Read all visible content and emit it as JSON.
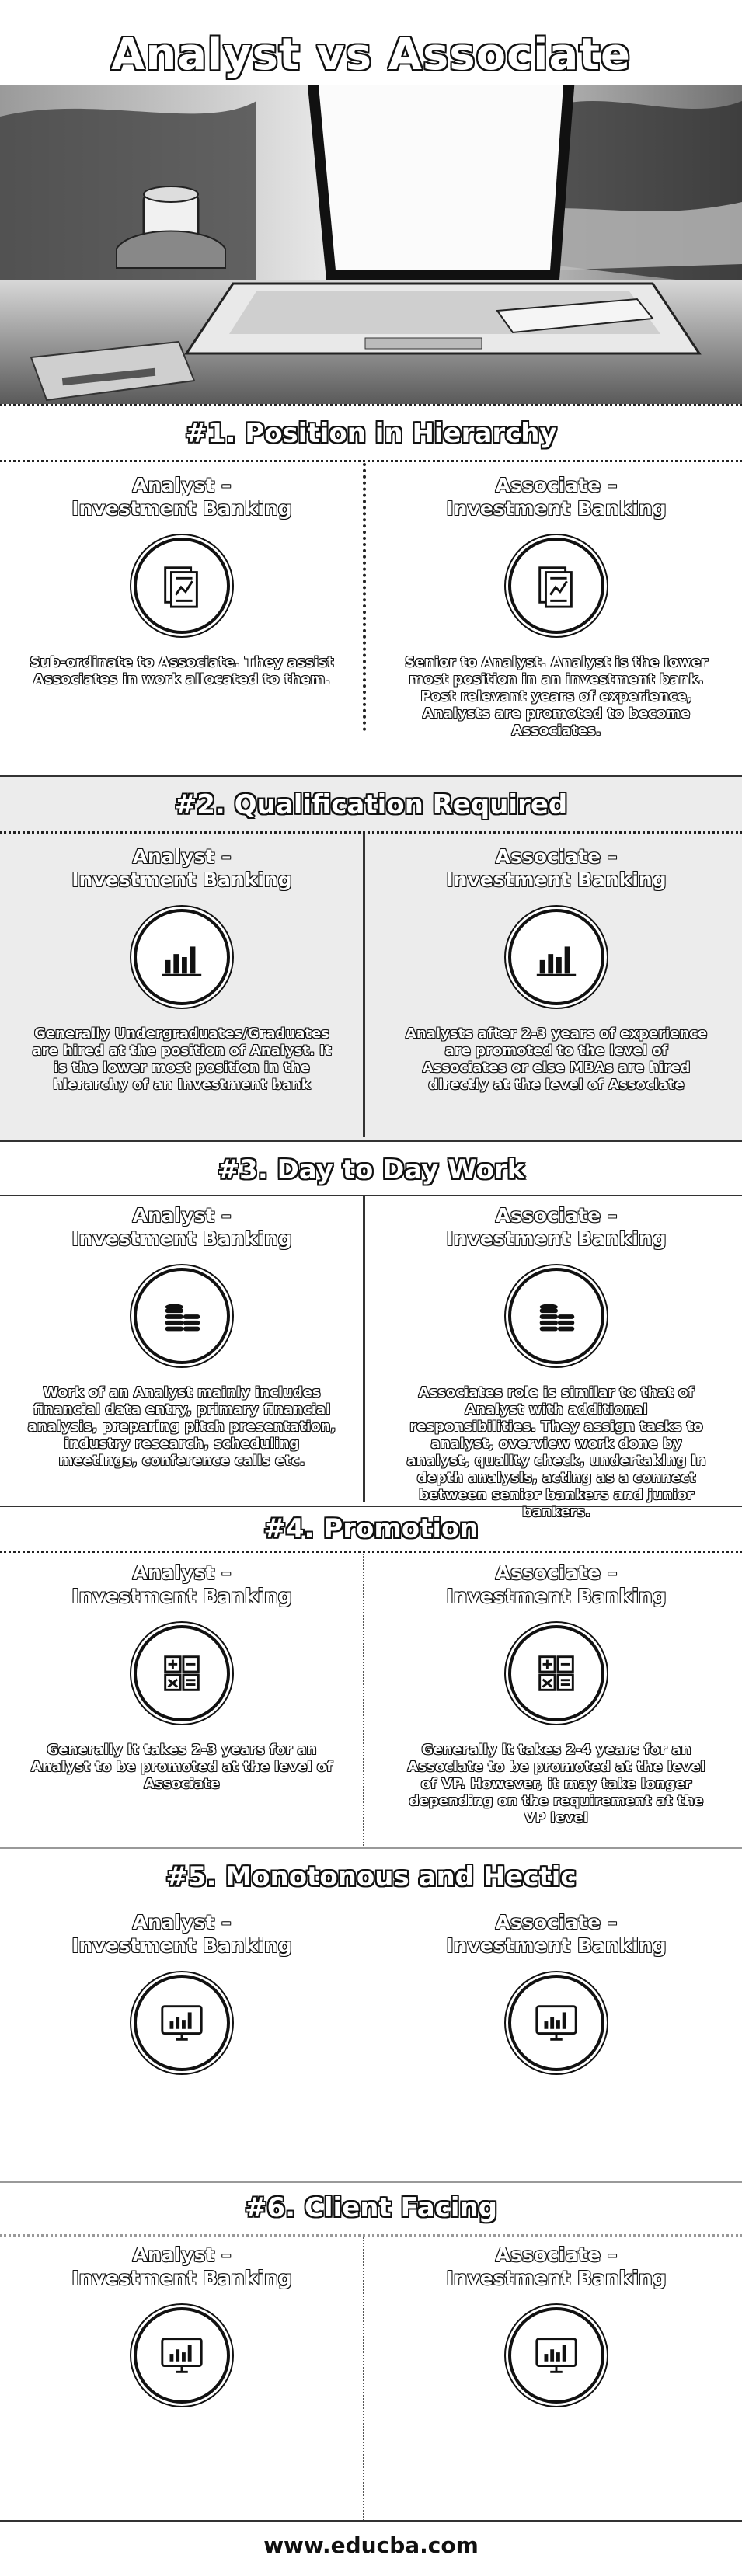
{
  "page": {
    "title": "Analyst vs Associate",
    "footer": "www.educba.com"
  },
  "sections": [
    {
      "title": "#1. Position in Hierarchy",
      "left": {
        "head1": "Analyst –",
        "head2": "Investment Banking",
        "icon": "document-chart-icon",
        "text": "Sub-ordinate to Associate. They assist Associates in work allocated to them."
      },
      "right": {
        "head1": "Associate –",
        "head2": "Investment Banking",
        "icon": "document-chart-icon",
        "text": "Senior to Analyst. Analyst is the lower most position in an investment bank. Post relevant years of experience, Analysts are promoted to become Associates."
      }
    },
    {
      "title": "#2. Qualification Required",
      "left": {
        "head1": "Analyst –",
        "head2": "Investment Banking",
        "icon": "bar-chart-icon",
        "text": "Generally Undergraduates/Graduates are hired at the position of Analyst. It is the lower most position in the hierarchy of an Investment bank"
      },
      "right": {
        "head1": "Associate –",
        "head2": "Investment Banking",
        "icon": "bar-chart-icon",
        "text": "Analysts after 2-3 years of experience are promoted to the level of Associates or else MBAs are hired directly at the level of Associate"
      }
    },
    {
      "title": "#3. Day to Day Work",
      "left": {
        "head1": "Analyst –",
        "head2": "Investment Banking",
        "icon": "coins-icon",
        "text": "Work of an Analyst mainly includes financial data entry, primary financial analysis, preparing pitch presentation, industry research, scheduling meetings, conference calls etc."
      },
      "right": {
        "head1": "Associate –",
        "head2": "Investment Banking",
        "icon": "coins-icon",
        "text": "Associates role is similar to that of Analyst with additional responsibilities. They assign tasks to analyst, overview work done by analyst, quality check, undertaking in depth analysis, acting as a connect between senior bankers and junior bankers."
      }
    },
    {
      "title": "#4. Promotion",
      "left": {
        "head1": "Analyst –",
        "head2": "Investment Banking",
        "icon": "calculator-icon",
        "text": "Generally it takes 2-3 years for an Analyst to be promoted at the level of Associate"
      },
      "right": {
        "head1": "Associate –",
        "head2": "Investment Banking",
        "icon": "calculator-icon",
        "text": "Generally it takes 2-4 years for an Associate to be promoted at the level of VP. However, it may take longer depending on the requirement at the VP level"
      }
    },
    {
      "title": "#5. Monotonous and Hectic",
      "left": {
        "head1": "Analyst –",
        "head2": "Investment Banking",
        "icon": "monitor-chart-icon",
        "text": ""
      },
      "right": {
        "head1": "Associate –",
        "head2": "Investment Banking",
        "icon": "monitor-chart-icon",
        "text": ""
      }
    },
    {
      "title": "#6. Client Facing",
      "left": {
        "head1": "Analyst –",
        "head2": "Investment Banking",
        "icon": "monitor-chart-icon",
        "text": ""
      },
      "right": {
        "head1": "Associate –",
        "head2": "Investment Banking",
        "icon": "monitor-chart-icon",
        "text": ""
      }
    }
  ]
}
